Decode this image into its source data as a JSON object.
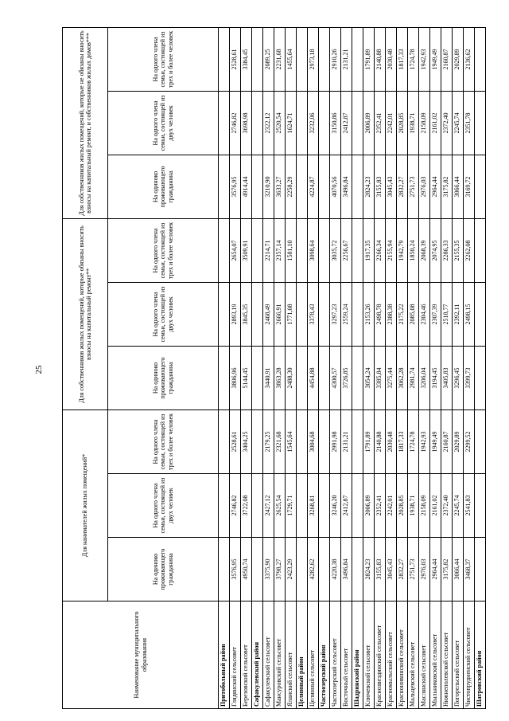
{
  "page": {
    "number": "25"
  },
  "table": {
    "name_header": "Наименование муниципального образования",
    "groups": [
      {
        "label": "Для нанимателей жилых помещений*"
      },
      {
        "label": "Для собственников жилых помещений, которые обязаны вносить взносы на капитальный ремонт**"
      },
      {
        "label": "Для собственников жилых помещений, которые не обязаны вносить взносы на капитальный ремонт, и собственников жилых домов***"
      }
    ],
    "sub_headers": [
      "На одиноко проживающего гражданина",
      "На одного члена семьи, состоящей из двух человек",
      "На одного члена семьи, состоящей из трех и более человек"
    ],
    "rows": [
      {
        "type": "section",
        "name": "Притобольный район"
      },
      {
        "type": "data",
        "name": "Глядянский сельсовет",
        "values": [
          "3576,95",
          "2746,82",
          "2528,61",
          "3806,96",
          "2893,19",
          "2654,07",
          "3576,95",
          "2746,82",
          "2528,61"
        ]
      },
      {
        "type": "data",
        "name": "Березовский сельсовет",
        "values": [
          "4950,74",
          "3722,08",
          "3404,25",
          "5144,45",
          "3845,35",
          "3509,91",
          "4914,44",
          "3698,98",
          "3384,45"
        ]
      },
      {
        "type": "section",
        "name": "Сафакулевский район"
      },
      {
        "type": "data",
        "name": "Сафакулевский сельсовет",
        "values": [
          "3375,90",
          "2427,12",
          "2179,25",
          "3440,91",
          "2468,49",
          "2214,71",
          "3210,90",
          "2322,12",
          "2089,25"
        ]
      },
      {
        "type": "data",
        "name": "Мансуровский сельсовет",
        "values": [
          "3798,27",
          "2625,54",
          "2321,68",
          "3863,28",
          "2666,91",
          "2357,14",
          "3633,27",
          "2520,54",
          "2231,68"
        ]
      },
      {
        "type": "data",
        "name": "Яланский сельсовет",
        "values": [
          "2423,29",
          "1729,71",
          "1545,64",
          "2488,30",
          "1771,08",
          "1581,10",
          "2258,29",
          "1624,71",
          "1455,64"
        ]
      },
      {
        "type": "section",
        "name": "Целинный район"
      },
      {
        "type": "data",
        "name": "Целинный сельсовет",
        "values": [
          "4282,62",
          "3268,81",
          "3004,68",
          "4454,88",
          "3378,43",
          "3098,64",
          "4224,87",
          "3232,06",
          "2973,18"
        ]
      },
      {
        "type": "section",
        "name": "Частоозерский район"
      },
      {
        "type": "data",
        "name": "Частоозерский сельсовет",
        "values": [
          "4220,38",
          "3246,20",
          "2991,98",
          "4300,57",
          "3297,23",
          "3035,72",
          "4070,56",
          "3150,86",
          "2910,26"
        ]
      },
      {
        "type": "data",
        "name": "Восточный сельсовет",
        "values": [
          "3496,84",
          "2412,87",
          "2131,21",
          "3726,85",
          "2559,24",
          "2256,67",
          "3496,84",
          "2412,87",
          "2131,21"
        ]
      },
      {
        "type": "section",
        "name": "Шадринский район"
      },
      {
        "type": "data",
        "name": "Ключевский сельсовет",
        "values": [
          "2824,23",
          "2006,89",
          "1791,89",
          "3054,24",
          "2153,26",
          "1917,35",
          "2824,23",
          "2006,89",
          "1791,89"
        ]
      },
      {
        "type": "data",
        "name": "Краснозвездинский сельсовет",
        "values": [
          "3155,83",
          "2352,41",
          "2140,88",
          "3385,84",
          "2498,78",
          "2266,34",
          "3155,83",
          "2352,41",
          "2140,88"
        ]
      },
      {
        "type": "data",
        "name": "Красномыльский сельсовет",
        "values": [
          "3045,43",
          "2242,01",
          "2030,48",
          "3275,44",
          "2388,38",
          "2155,94",
          "3045,43",
          "2242,01",
          "2030,48"
        ]
      },
      {
        "type": "data",
        "name": "Краснонивинский сельсовет",
        "values": [
          "2832,27",
          "2028,85",
          "1817,33",
          "3062,28",
          "2175,22",
          "1942,79",
          "2832,27",
          "2028,85",
          "1817,33"
        ]
      },
      {
        "type": "data",
        "name": "Мальцевский сельсовет",
        "values": [
          "2751,73",
          "1938,71",
          "1724,78",
          "2981,74",
          "2085,08",
          "1850,24",
          "2751,73",
          "1938,71",
          "1724,78"
        ]
      },
      {
        "type": "data",
        "name": "Маслянский сельсовет",
        "values": [
          "2976,03",
          "2158,09",
          "1942,93",
          "3206,04",
          "2304,46",
          "2068,39",
          "2976,03",
          "2158,09",
          "1942,93"
        ]
      },
      {
        "type": "data",
        "name": "Мыльниковский сельсовет",
        "values": [
          "2964,44",
          "2161,02",
          "1949,49",
          "3194,45",
          "2307,39",
          "2074,95",
          "2964,44",
          "2161,02",
          "1949,49"
        ]
      },
      {
        "type": "data",
        "name": "Нижнеполевской сельсовет",
        "values": [
          "3175,82",
          "2372,40",
          "2160,87",
          "3405,83",
          "2518,77",
          "2286,33",
          "3175,82",
          "2372,40",
          "2160,87"
        ]
      },
      {
        "type": "data",
        "name": "Погорельский сельсовет",
        "values": [
          "3066,44",
          "2245,74",
          "2029,89",
          "3296,45",
          "2392,11",
          "2155,35",
          "3066,44",
          "2245,74",
          "2029,89"
        ]
      },
      {
        "type": "data",
        "name": "Чистопрудненский сельсовет",
        "values": [
          "3468,37",
          "2541,83",
          "2299,52",
          "3399,73",
          "2498,15",
          "2262,08",
          "3169,72",
          "2351,78",
          "2136,62"
        ]
      },
      {
        "type": "section",
        "name": "Шатровский район"
      }
    ]
  }
}
